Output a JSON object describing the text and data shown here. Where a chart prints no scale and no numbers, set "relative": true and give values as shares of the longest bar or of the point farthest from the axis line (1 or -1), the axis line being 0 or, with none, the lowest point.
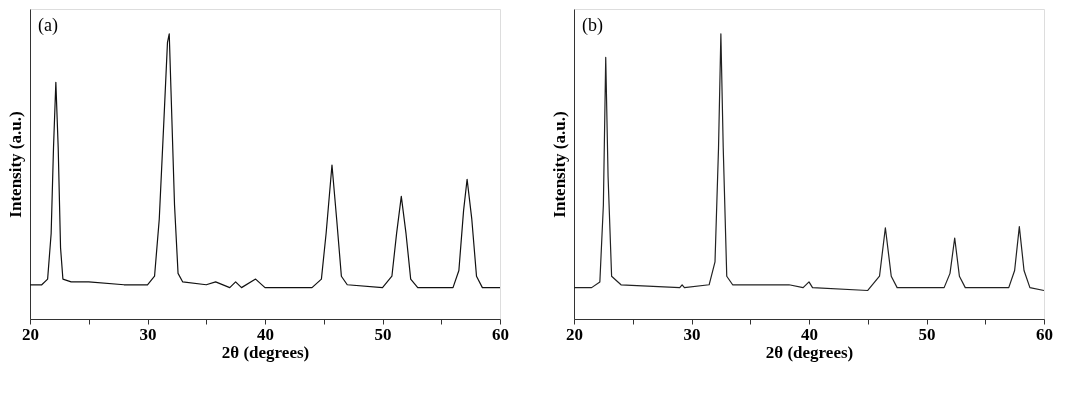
{
  "chart_data": [
    {
      "type": "line",
      "relative": true,
      "xlabel": "2θ (degrees)",
      "ylabel": "Intensity (a.u.)",
      "annotations": [
        "(a)"
      ],
      "xlim": [
        20,
        60
      ],
      "xticks": [
        20,
        {
          "value": 25,
          "label": null
        },
        30,
        {
          "value": 35,
          "label": null
        },
        40,
        {
          "value": 45,
          "label": null
        },
        50,
        {
          "value": 55,
          "label": null
        },
        60
      ],
      "grid": false,
      "marker": "none",
      "line_style": "solid",
      "series": [
        {
          "color": "#111111",
          "x": [
            20,
            21,
            21.5,
            21.8,
            22.0,
            22.2,
            22.4,
            22.6,
            22.8,
            23.5,
            25,
            28,
            30,
            30.6,
            31.0,
            31.4,
            31.7,
            31.85,
            32.0,
            32.3,
            32.6,
            33,
            35,
            35.8,
            37,
            37.5,
            38,
            39.2,
            40,
            42.5,
            44,
            44.8,
            45.2,
            45.7,
            46.1,
            46.5,
            47,
            50,
            50.8,
            51.2,
            51.6,
            52,
            52.4,
            53,
            56,
            56.5,
            56.9,
            57.2,
            57.6,
            58,
            58.5,
            60
          ],
          "values": [
            0.12,
            0.12,
            0.14,
            0.3,
            0.6,
            0.83,
            0.6,
            0.25,
            0.14,
            0.13,
            0.13,
            0.12,
            0.12,
            0.15,
            0.35,
            0.7,
            0.97,
            1.0,
            0.8,
            0.4,
            0.16,
            0.13,
            0.12,
            0.13,
            0.11,
            0.13,
            0.11,
            0.14,
            0.11,
            0.11,
            0.11,
            0.14,
            0.3,
            0.54,
            0.35,
            0.15,
            0.12,
            0.11,
            0.15,
            0.3,
            0.43,
            0.3,
            0.14,
            0.11,
            0.11,
            0.17,
            0.38,
            0.49,
            0.35,
            0.15,
            0.11,
            0.11
          ]
        }
      ]
    },
    {
      "type": "line",
      "relative": true,
      "xlabel": "2θ (degrees)",
      "ylabel": "Intensity (a.u.)",
      "annotations": [
        "(b)"
      ],
      "xlim": [
        20,
        60
      ],
      "xticks": [
        20,
        {
          "value": 25,
          "label": null
        },
        30,
        {
          "value": 35,
          "label": null
        },
        40,
        {
          "value": 45,
          "label": null
        },
        50,
        {
          "value": 55,
          "label": null
        },
        60
      ],
      "grid": false,
      "marker": "none",
      "line_style": "solid",
      "series": [
        {
          "color": "#222222",
          "x": [
            20,
            21.5,
            22.2,
            22.5,
            22.7,
            22.9,
            23.2,
            24,
            29,
            29.2,
            29.4,
            31.5,
            32.0,
            32.3,
            32.5,
            32.7,
            33.0,
            33.5,
            36.4,
            38.3,
            39.5,
            40,
            40.3,
            45,
            46,
            46.5,
            47,
            47.5,
            51.5,
            52,
            52.4,
            52.8,
            53.3,
            57,
            57.5,
            57.9,
            58.3,
            58.8,
            60
          ],
          "values": [
            0.11,
            0.11,
            0.13,
            0.4,
            0.917,
            0.5,
            0.15,
            0.12,
            0.11,
            0.12,
            0.11,
            0.12,
            0.2,
            0.6,
            1.0,
            0.6,
            0.15,
            0.12,
            0.12,
            0.12,
            0.11,
            0.13,
            0.11,
            0.1,
            0.15,
            0.32,
            0.15,
            0.11,
            0.11,
            0.16,
            0.284,
            0.15,
            0.11,
            0.11,
            0.17,
            0.324,
            0.17,
            0.11,
            0.1
          ]
        }
      ]
    }
  ]
}
